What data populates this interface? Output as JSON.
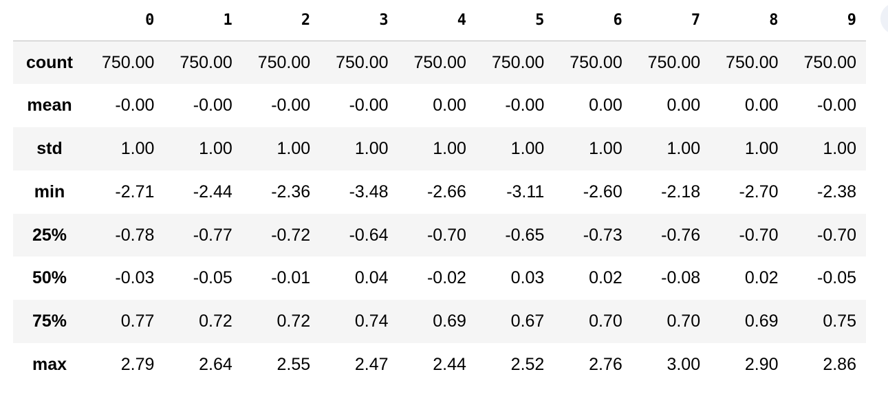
{
  "table": {
    "columns": [
      "0",
      "1",
      "2",
      "3",
      "4",
      "5",
      "6",
      "7",
      "8",
      "9"
    ],
    "rows": [
      {
        "label": "count",
        "values": [
          "750.00",
          "750.00",
          "750.00",
          "750.00",
          "750.00",
          "750.00",
          "750.00",
          "750.00",
          "750.00",
          "750.00"
        ]
      },
      {
        "label": "mean",
        "values": [
          "-0.00",
          "-0.00",
          "-0.00",
          "-0.00",
          "0.00",
          "-0.00",
          "0.00",
          "0.00",
          "0.00",
          "-0.00"
        ]
      },
      {
        "label": "std",
        "values": [
          "1.00",
          "1.00",
          "1.00",
          "1.00",
          "1.00",
          "1.00",
          "1.00",
          "1.00",
          "1.00",
          "1.00"
        ]
      },
      {
        "label": "min",
        "values": [
          "-2.71",
          "-2.44",
          "-2.36",
          "-3.48",
          "-2.66",
          "-3.11",
          "-2.60",
          "-2.18",
          "-2.70",
          "-2.38"
        ]
      },
      {
        "label": "25%",
        "values": [
          "-0.78",
          "-0.77",
          "-0.72",
          "-0.64",
          "-0.70",
          "-0.65",
          "-0.73",
          "-0.76",
          "-0.70",
          "-0.70"
        ]
      },
      {
        "label": "50%",
        "values": [
          "-0.03",
          "-0.05",
          "-0.01",
          "0.04",
          "-0.02",
          "0.03",
          "0.02",
          "-0.08",
          "0.02",
          "-0.05"
        ]
      },
      {
        "label": "75%",
        "values": [
          "0.77",
          "0.72",
          "0.72",
          "0.74",
          "0.69",
          "0.67",
          "0.70",
          "0.70",
          "0.69",
          "0.75"
        ]
      },
      {
        "label": "max",
        "values": [
          "2.79",
          "2.64",
          "2.55",
          "2.47",
          "2.44",
          "2.52",
          "2.76",
          "3.00",
          "2.90",
          "2.86"
        ]
      }
    ]
  }
}
